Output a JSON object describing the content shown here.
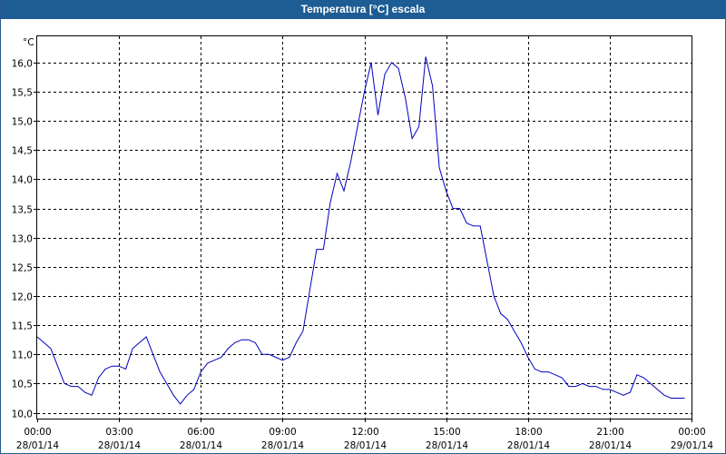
{
  "window": {
    "title": "Temperatura [°C] escala"
  },
  "chart_data": {
    "type": "line",
    "title": "Temperatura [°C] escala",
    "ylabel": "°C",
    "xlabel": "",
    "ylim": [
      9.9,
      16.45
    ],
    "y_ticks": [
      "16,0",
      "15,5",
      "15,0",
      "14,5",
      "14,0",
      "13,5",
      "13,0",
      "12,5",
      "12,0",
      "11,5",
      "11,0",
      "10,5",
      "10,0"
    ],
    "y_tick_values": [
      16.0,
      15.5,
      15.0,
      14.5,
      14.0,
      13.5,
      13.0,
      12.5,
      12.0,
      11.5,
      11.0,
      10.5,
      10.0
    ],
    "x_range_hours": [
      0,
      24
    ],
    "x_ticks": [
      {
        "time": "00:00",
        "date": "28/01/14"
      },
      {
        "time": "03:00",
        "date": "28/01/14"
      },
      {
        "time": "06:00",
        "date": "28/01/14"
      },
      {
        "time": "09:00",
        "date": "28/01/14"
      },
      {
        "time": "12:00",
        "date": "28/01/14"
      },
      {
        "time": "15:00",
        "date": "28/01/14"
      },
      {
        "time": "18:00",
        "date": "28/01/14"
      },
      {
        "time": "21:00",
        "date": "28/01/14"
      },
      {
        "time": "00:00",
        "date": "29/01/14"
      }
    ],
    "grid": true,
    "line_color": "#0000c0",
    "series": [
      {
        "x": [
          0.0,
          0.25,
          0.5,
          0.75,
          1.0,
          1.25,
          1.5,
          1.75,
          2.0,
          2.25,
          2.5,
          2.75,
          3.0,
          3.25,
          3.5,
          3.75,
          4.0,
          4.25,
          4.5,
          4.75,
          5.0,
          5.25,
          5.5,
          5.75,
          6.0,
          6.25,
          6.5,
          6.75,
          7.0,
          7.25,
          7.5,
          7.75,
          8.0,
          8.25,
          8.5,
          8.75,
          9.0,
          9.25,
          9.5,
          9.75,
          10.0,
          10.25,
          10.5,
          10.75,
          11.0,
          11.25,
          11.5,
          11.75,
          12.0,
          12.25,
          12.5,
          12.75,
          13.0,
          13.25,
          13.5,
          13.75,
          14.0,
          14.25,
          14.5,
          14.75,
          15.0,
          15.25,
          15.5,
          15.75,
          16.0,
          16.25,
          16.5,
          16.75,
          17.0,
          17.25,
          17.5,
          17.75,
          18.0,
          18.25,
          18.5,
          18.75,
          19.0,
          19.25,
          19.5,
          19.75,
          20.0,
          20.25,
          20.5,
          20.75,
          21.0,
          21.25,
          21.5,
          21.75,
          22.0,
          22.25,
          22.5,
          22.75,
          23.0,
          23.25,
          23.5,
          23.75
        ],
        "y": [
          11.3,
          11.2,
          11.1,
          10.8,
          10.5,
          10.45,
          10.45,
          10.35,
          10.3,
          10.6,
          10.75,
          10.8,
          10.8,
          10.75,
          11.1,
          11.2,
          11.3,
          11.0,
          10.7,
          10.5,
          10.3,
          10.15,
          10.3,
          10.4,
          10.7,
          10.85,
          10.9,
          10.95,
          11.1,
          11.2,
          11.25,
          11.25,
          11.2,
          11.0,
          11.0,
          10.95,
          10.9,
          10.95,
          11.2,
          11.4,
          12.1,
          12.8,
          12.8,
          13.6,
          14.1,
          13.8,
          14.3,
          14.9,
          15.5,
          16.0,
          15.1,
          15.8,
          16.0,
          15.9,
          15.4,
          14.7,
          14.9,
          16.1,
          15.6,
          14.2,
          13.8,
          13.5,
          13.5,
          13.25,
          13.2,
          13.2,
          12.6,
          12.0,
          11.7,
          11.6,
          11.4,
          11.2,
          10.95,
          10.75,
          10.7,
          10.7,
          10.65,
          10.6,
          10.45,
          10.45,
          10.5,
          10.45,
          10.45,
          10.4,
          10.4,
          10.35,
          10.3,
          10.35,
          10.65,
          10.6,
          10.5,
          10.4,
          10.3,
          10.25,
          10.25,
          10.25
        ]
      }
    ]
  }
}
